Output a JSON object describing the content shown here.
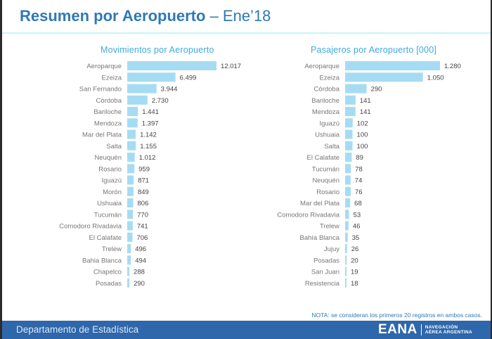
{
  "page": {
    "title_bold": "Resumen por Aeropuerto",
    "title_rest": " – Ene’18",
    "note": "NOTA: se consideran los primeros 20 registros en ambos casos.",
    "footer_dept": "Departamento de Estadística",
    "logo_word": "EANA",
    "logo_line1": "NAVEGACIÓN",
    "logo_line2": "AÉREA ARGENTINA"
  },
  "colors": {
    "bar": "#a6dcf3",
    "title": "#2f79b6",
    "chart_title": "#3fa9dc",
    "footer": "#2e67ab"
  },
  "chart_data": [
    {
      "type": "bar",
      "orientation": "horizontal",
      "title": "Movimientos por Aeropuerto",
      "xlabel": "",
      "ylabel": "",
      "grid": false,
      "legend": "none",
      "xlim": [
        0,
        12017
      ],
      "categories": [
        "Aeroparque",
        "Ezeiza",
        "San Fernando",
        "Córdoba",
        "Bariloche",
        "Mendoza",
        "Mar del Plata",
        "Salta",
        "Neuquén",
        "Rosario",
        "Iguazú",
        "Morón",
        "Ushuaia",
        "Tucumán",
        "Comodoro Rivadavia",
        "El Calafate",
        "Trelew",
        "Bahia Blanca",
        "Chapelco",
        "Posadas"
      ],
      "values": [
        12017,
        6499,
        3944,
        2730,
        1441,
        1397,
        1142,
        1155,
        1012,
        959,
        871,
        849,
        806,
        770,
        741,
        706,
        496,
        494,
        288,
        290
      ],
      "labels": [
        "12.017",
        "6.499",
        "3.944",
        "2.730",
        "1.441",
        "1.397",
        "1.142",
        "1.155",
        "1.012",
        "959",
        "871",
        "849",
        "806",
        "770",
        "741",
        "706",
        "496",
        "494",
        "288",
        "290"
      ]
    },
    {
      "type": "bar",
      "orientation": "horizontal",
      "title": "Pasajeros por Aeropuerto [000]",
      "xlabel": "",
      "ylabel": "",
      "grid": false,
      "legend": "none",
      "xlim": [
        0,
        1280
      ],
      "categories": [
        "Aeroparque",
        "Ezeiza",
        "Córdoba",
        "Bariloche",
        "Mendoza",
        "Iguazú",
        "Ushuaia",
        "Salta",
        "El Calafate",
        "Tucumán",
        "Neuquén",
        "Rosario",
        "Mar del Plata",
        "Comodoro Rivadavia",
        "Trelew",
        "Bahía Blanca",
        "Jujuy",
        "Posadas",
        "San Juan",
        "Resistencia"
      ],
      "values": [
        1280,
        1050,
        290,
        141,
        141,
        102,
        100,
        100,
        89,
        78,
        74,
        76,
        68,
        53,
        46,
        35,
        26,
        20,
        19,
        18
      ],
      "labels": [
        "1.280",
        "1.050",
        "290",
        "141",
        "141",
        "102",
        "100",
        "100",
        "89",
        "78",
        "74",
        "76",
        "68",
        "53",
        "46",
        "35",
        "26",
        "20",
        "19",
        "18"
      ]
    }
  ]
}
